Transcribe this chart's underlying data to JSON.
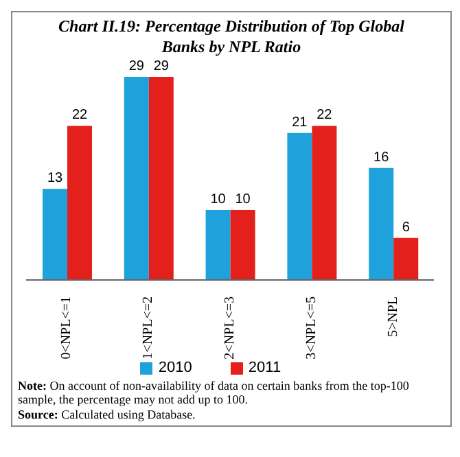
{
  "chart_data": {
    "type": "bar",
    "title": "Chart II.19: Percentage Distribution of Top Global Banks by NPL Ratio",
    "categories": [
      "0<NPL<=1",
      "1<NPL<=2",
      "2<NPL<=3",
      "3<NPL<=5",
      "5>NPL"
    ],
    "series": [
      {
        "name": "2010",
        "color": "#1fa2dc",
        "values": [
          13,
          29,
          10,
          21,
          16
        ]
      },
      {
        "name": "2011",
        "color": "#e3201b",
        "values": [
          22,
          29,
          10,
          22,
          6
        ]
      }
    ],
    "data_labels": true,
    "grid": false,
    "legend": "bottom",
    "annotations": [
      "Note: On account of non-availability of data on certain banks from the top-100 sample, the percentage may not add up to 100.",
      "Source: Calculated using Database."
    ]
  }
}
